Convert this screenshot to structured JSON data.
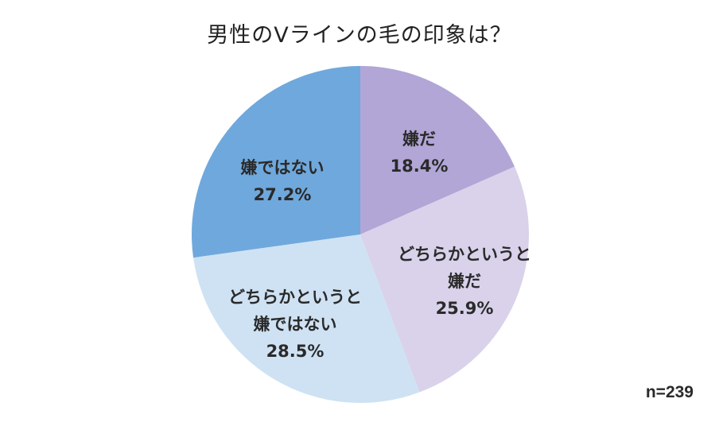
{
  "chart": {
    "title": "男性のVラインの毛の印象は？",
    "sample_note": "n=239",
    "slices": [
      {
        "line1": "嫌だ",
        "line2": "",
        "value_label": "18.4%",
        "color": "#b1a6d6"
      },
      {
        "line1": "どちらかというと",
        "line2": "嫌だ",
        "value_label": "25.9%",
        "color": "#d9d2ea"
      },
      {
        "line1": "どちらかというと",
        "line2": "嫌ではない",
        "value_label": "28.5%",
        "color": "#cfe2f3"
      },
      {
        "line1": "嫌ではない",
        "line2": "",
        "value_label": "27.2%",
        "color": "#6fa8dc"
      }
    ]
  },
  "chart_data": {
    "type": "pie",
    "title": "男性のVラインの毛の印象は？",
    "categories": [
      "嫌だ",
      "どちらかというと嫌だ",
      "どちらかというと嫌ではない",
      "嫌ではない"
    ],
    "values": [
      18.4,
      25.9,
      28.5,
      27.2
    ],
    "unit": "%",
    "colors": [
      "#b1a6d6",
      "#d9d2ea",
      "#cfe2f3",
      "#6fa8dc"
    ],
    "start_angle": "12 o'clock",
    "direction": "clockwise",
    "annotations": [
      "n=239"
    ],
    "legend": "none (labels inside slices)"
  }
}
